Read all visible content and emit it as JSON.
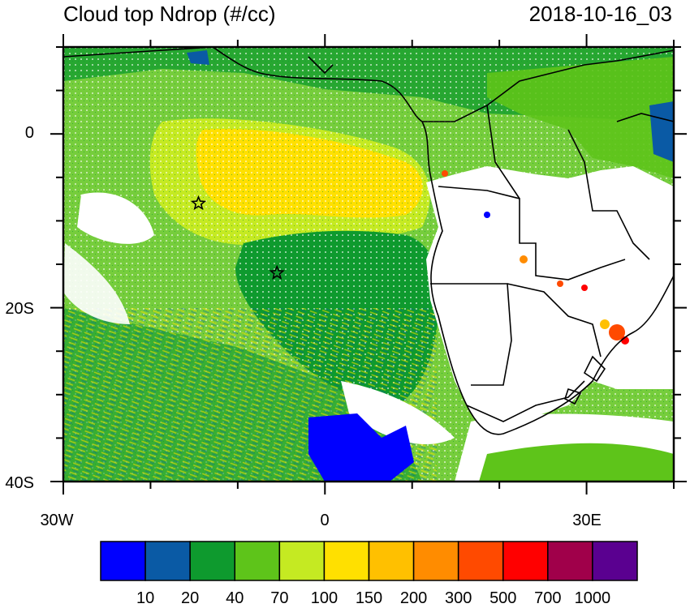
{
  "title": "Cloud top Ndrop (#/cc)",
  "datetime": "2018-10-16_03",
  "lat_labels": [
    "0",
    "20S",
    "40S"
  ],
  "lon_labels": [
    "30W",
    "0",
    "30E"
  ],
  "map_extent": {
    "lon_min": -30,
    "lon_max": 40,
    "lat_min": -40,
    "lat_max": 10
  },
  "markers": [
    {
      "name": "star",
      "lon": -14.5,
      "lat": -8
    },
    {
      "name": "star",
      "lon": -5.5,
      "lat": -16
    }
  ],
  "colorbar": {
    "colors": [
      "#0000ff",
      "#0a5aa5",
      "#0e9a2e",
      "#5ec41a",
      "#c5ea22",
      "#ffe000",
      "#ffc000",
      "#ff8c00",
      "#ff4a00",
      "#ff0000",
      "#a0004a",
      "#5a0090"
    ],
    "labels": [
      "10",
      "20",
      "40",
      "70",
      "100",
      "150",
      "200",
      "300",
      "500",
      "700",
      "1000"
    ]
  }
}
